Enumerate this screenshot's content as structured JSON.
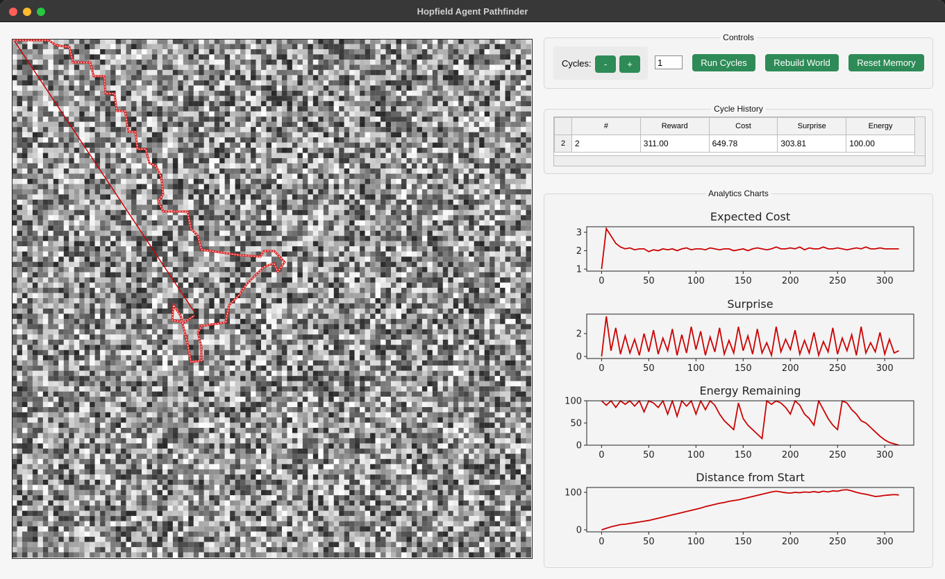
{
  "window_title": "Hopfield Agent Pathfinder",
  "controls": {
    "title": "Controls",
    "cycles_label": "Cycles:",
    "minus": "-",
    "plus": "+",
    "cycles_value": "1",
    "run": "Run Cycles",
    "rebuild": "Rebuild World",
    "reset": "Reset Memory"
  },
  "cycle_history": {
    "title": "Cycle History",
    "columns": [
      "#",
      "Reward",
      "Cost",
      "Surprise",
      "Energy"
    ],
    "row_headers": [
      "2"
    ],
    "rows": [
      [
        "2",
        "311.00",
        "649.78",
        "303.81",
        "100.00"
      ]
    ]
  },
  "analytics": {
    "title": "Analytics Charts"
  },
  "chart_data": [
    {
      "type": "line",
      "title": "Expected Cost",
      "color": "#cc0000",
      "x": [
        0,
        5,
        10,
        15,
        20,
        25,
        30,
        35,
        40,
        45,
        50,
        55,
        60,
        65,
        70,
        75,
        80,
        85,
        90,
        95,
        100,
        105,
        110,
        115,
        120,
        125,
        130,
        135,
        140,
        145,
        150,
        155,
        160,
        165,
        170,
        175,
        180,
        185,
        190,
        195,
        200,
        205,
        210,
        215,
        220,
        225,
        230,
        235,
        240,
        245,
        250,
        255,
        260,
        265,
        270,
        275,
        280,
        285,
        290,
        295,
        300,
        305,
        310,
        315
      ],
      "values": [
        1.0,
        3.2,
        2.8,
        2.4,
        2.2,
        2.1,
        2.15,
        2.05,
        2.1,
        2.1,
        1.95,
        2.05,
        2.0,
        2.1,
        2.05,
        2.1,
        2.0,
        2.1,
        2.15,
        2.05,
        2.1,
        2.1,
        2.05,
        2.15,
        2.1,
        2.05,
        2.1,
        2.1,
        2.0,
        2.05,
        2.1,
        2.0,
        2.1,
        2.15,
        2.1,
        2.05,
        2.1,
        2.2,
        2.1,
        2.1,
        2.15,
        2.1,
        2.2,
        2.05,
        2.15,
        2.1,
        2.1,
        2.2,
        2.1,
        2.1,
        2.15,
        2.1,
        2.05,
        2.1,
        2.15,
        2.1,
        2.2,
        2.1,
        2.1,
        2.15,
        2.1,
        2.1,
        2.1,
        2.1
      ],
      "xlim": [
        -15.75,
        330.75
      ],
      "ylim": [
        0.89,
        3.3
      ],
      "xticks": [
        0,
        50,
        100,
        150,
        200,
        250,
        300
      ],
      "yticks": [
        1,
        2,
        3
      ]
    },
    {
      "type": "line",
      "title": "Surprise",
      "color": "#cc0000",
      "x": [
        0,
        5,
        10,
        15,
        20,
        25,
        30,
        35,
        40,
        45,
        50,
        55,
        60,
        65,
        70,
        75,
        80,
        85,
        90,
        95,
        100,
        105,
        110,
        115,
        120,
        125,
        130,
        135,
        140,
        145,
        150,
        155,
        160,
        165,
        170,
        175,
        180,
        185,
        190,
        195,
        200,
        205,
        210,
        215,
        220,
        225,
        230,
        235,
        240,
        245,
        250,
        255,
        260,
        265,
        270,
        275,
        280,
        285,
        290,
        295,
        300,
        305,
        310,
        315
      ],
      "values": [
        0,
        3.5,
        0.5,
        2.5,
        0.2,
        1.8,
        0.3,
        1.5,
        0.1,
        2.0,
        0.4,
        2.3,
        0.2,
        1.6,
        0.5,
        2.4,
        0.1,
        1.9,
        0.3,
        2.6,
        0.6,
        2.2,
        0.1,
        1.7,
        0.4,
        2.5,
        0.2,
        1.4,
        0.3,
        2.6,
        0.5,
        1.8,
        0.2,
        2.4,
        0.3,
        1.2,
        0.1,
        2.6,
        0.4,
        1.5,
        0.6,
        2.3,
        0.2,
        1.4,
        0.3,
        2.1,
        0.1,
        1.3,
        0.4,
        2.5,
        0.2,
        1.6,
        0.5,
        1.9,
        0.1,
        2.6,
        0.3,
        1.2,
        0.4,
        2.1,
        0.2,
        1.5,
        0.3,
        0.5
      ],
      "xlim": [
        -15.75,
        330.75
      ],
      "ylim": [
        -0.18,
        3.7
      ],
      "xticks": [
        0,
        50,
        100,
        150,
        200,
        250,
        300
      ],
      "yticks": [
        0,
        2
      ]
    },
    {
      "type": "line",
      "title": "Energy Remaining",
      "color": "#cc0000",
      "x": [
        0,
        5,
        10,
        15,
        20,
        25,
        30,
        35,
        40,
        45,
        50,
        55,
        60,
        65,
        70,
        75,
        80,
        85,
        90,
        95,
        100,
        105,
        110,
        115,
        120,
        125,
        130,
        135,
        140,
        145,
        150,
        155,
        160,
        165,
        170,
        175,
        180,
        185,
        190,
        195,
        200,
        205,
        210,
        215,
        220,
        225,
        230,
        235,
        240,
        245,
        250,
        255,
        260,
        265,
        270,
        275,
        280,
        285,
        290,
        295,
        300,
        305,
        310,
        315
      ],
      "values": [
        100,
        90,
        100,
        85,
        100,
        92,
        100,
        88,
        100,
        75,
        100,
        95,
        85,
        100,
        70,
        100,
        65,
        100,
        88,
        100,
        70,
        100,
        80,
        100,
        90,
        70,
        55,
        45,
        35,
        95,
        60,
        45,
        35,
        25,
        15,
        100,
        92,
        100,
        95,
        85,
        70,
        100,
        90,
        70,
        60,
        45,
        100,
        80,
        60,
        45,
        35,
        100,
        95,
        80,
        70,
        55,
        50,
        40,
        30,
        20,
        12,
        6,
        3,
        0
      ],
      "xlim": [
        -15.75,
        330.75
      ],
      "ylim": [
        0,
        100
      ],
      "xticks": [
        0,
        50,
        100,
        150,
        200,
        250,
        300
      ],
      "yticks": [
        0,
        50,
        100
      ]
    },
    {
      "type": "line",
      "title": "Distance from Start",
      "color": "#cc0000",
      "x": [
        0,
        5,
        10,
        15,
        20,
        25,
        30,
        35,
        40,
        45,
        50,
        55,
        60,
        65,
        70,
        75,
        80,
        85,
        90,
        95,
        100,
        105,
        110,
        115,
        120,
        125,
        130,
        135,
        140,
        145,
        150,
        155,
        160,
        165,
        170,
        175,
        180,
        185,
        190,
        195,
        200,
        205,
        210,
        215,
        220,
        225,
        230,
        235,
        240,
        245,
        250,
        255,
        260,
        265,
        270,
        275,
        280,
        285,
        290,
        295,
        300,
        305,
        310,
        315
      ],
      "values": [
        0,
        4,
        8,
        11,
        14,
        15,
        17,
        19,
        21,
        23,
        25,
        28,
        31,
        34,
        37,
        40,
        43,
        46,
        49,
        52,
        55,
        58,
        62,
        65,
        68,
        71,
        73,
        76,
        78,
        80,
        83,
        86,
        89,
        92,
        95,
        98,
        101,
        103,
        101,
        99,
        98,
        100,
        99,
        101,
        100,
        102,
        100,
        103,
        101,
        104,
        103,
        106,
        107,
        104,
        100,
        97,
        95,
        92,
        89,
        90,
        92,
        93,
        94,
        93
      ],
      "xlim": [
        -15.75,
        330.75
      ],
      "ylim": [
        -5.4,
        113
      ],
      "xticks": [
        0,
        50,
        100,
        150,
        200,
        250,
        300
      ],
      "yticks": [
        0,
        100
      ]
    }
  ]
}
